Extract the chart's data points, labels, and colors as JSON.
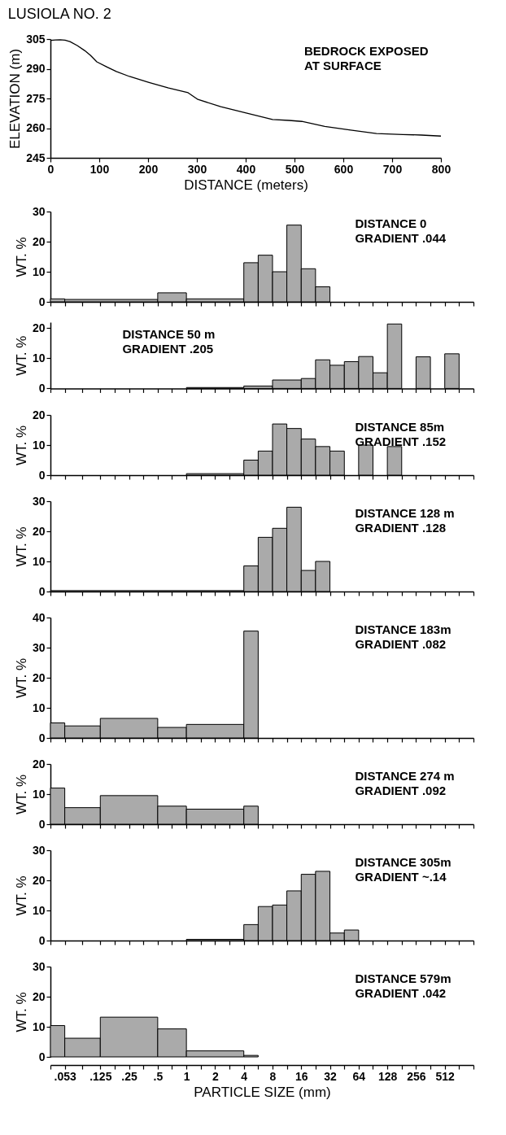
{
  "chart_data": [
    {
      "type": "line",
      "title": "LUSIOLA NO. 2",
      "xlabel": "DISTANCE (meters)",
      "ylabel": "ELEVATION (m)",
      "annotations": [
        "BEDROCK EXPOSED",
        "AT SURFACE"
      ],
      "color": "#000000",
      "marker": "none",
      "x": [
        0,
        10,
        20,
        30,
        40,
        55,
        70,
        82,
        95,
        115,
        135,
        162,
        202,
        242,
        282,
        302,
        349,
        401,
        455,
        489,
        515,
        562,
        615,
        668,
        722,
        760,
        800
      ],
      "values": [
        304.3,
        304.5,
        304.6,
        304.4,
        303.7,
        301.7,
        299.2,
        296.8,
        293.5,
        291,
        288.6,
        286.1,
        283.1,
        280.3,
        277.9,
        274.5,
        270.8,
        267.7,
        264.4,
        263.9,
        263.4,
        260.9,
        259,
        257.3,
        256.8,
        256.5,
        256
      ],
      "xlim": [
        0,
        800
      ],
      "xticks": [
        0,
        100,
        200,
        300,
        400,
        500,
        600,
        700,
        800
      ],
      "ylim": [
        245,
        305
      ],
      "yticks": [
        245,
        260,
        275,
        290,
        305
      ]
    },
    {
      "type": "histogram",
      "ylabel": "WT. %",
      "annotations": [
        "DISTANCE 0",
        "GRADIENT .044"
      ],
      "color": "#aaaaaa",
      "log": "x",
      "tick_labels": "y",
      "bins": [
        0.0375,
        0.053,
        0.5,
        1,
        4,
        5.66,
        8,
        11.3,
        16,
        22.6,
        32
      ],
      "values": [
        1,
        0.8,
        3,
        1,
        13,
        15.5,
        10,
        25.5,
        11,
        5
      ],
      "xlim": [
        0.0375,
        1024
      ],
      "xticks": [
        0.0375,
        0.053,
        0.0814,
        0.125,
        0.177,
        0.25,
        0.354,
        0.5,
        0.707,
        1,
        1.41,
        2,
        2.83,
        4,
        5.66,
        8,
        11.3,
        16,
        22.6,
        32,
        45.3,
        64,
        90.5,
        128,
        181,
        256,
        362,
        512,
        724,
        1024
      ],
      "ylim": [
        0,
        30
      ],
      "yticks": [
        0,
        10,
        20,
        30
      ]
    },
    {
      "type": "histogram",
      "ylabel": "WT. %",
      "annotations": [
        "DISTANCE 50 m",
        "GRADIENT .205"
      ],
      "color": "#aaaaaa",
      "log": "x",
      "tick_labels": "y",
      "bins": [
        1,
        4,
        8,
        16,
        22.6,
        32,
        45.3,
        64,
        90.5,
        128,
        181,
        256,
        362,
        512,
        724
      ],
      "values": [
        0.3,
        0.8,
        2.8,
        3.3,
        9.5,
        7.7,
        8.9,
        10.6,
        5.2,
        21.4,
        0,
        10.5,
        0,
        11.5
      ],
      "xlim": [
        0.0375,
        1024
      ],
      "xticks": [
        0.0375,
        0.053,
        0.0814,
        0.125,
        0.177,
        0.25,
        0.354,
        0.5,
        0.707,
        1,
        1.41,
        2,
        2.83,
        4,
        5.66,
        8,
        11.3,
        16,
        22.6,
        32,
        45.3,
        64,
        90.5,
        128,
        181,
        256,
        362,
        512,
        724,
        1024
      ],
      "ylim": [
        0,
        22
      ],
      "yticks": [
        0,
        10,
        20
      ]
    },
    {
      "type": "histogram",
      "ylabel": "WT. %",
      "annotations": [
        "DISTANCE 85m",
        "GRADIENT .152"
      ],
      "color": "#aaaaaa",
      "log": "x",
      "tick_labels": "y",
      "bins": [
        1,
        4,
        5.66,
        8,
        11.3,
        16,
        22.6,
        32,
        45.3,
        64,
        90.5,
        128,
        181
      ],
      "values": [
        0.5,
        5,
        8,
        17,
        15.5,
        12,
        9.5,
        8,
        0,
        10,
        0,
        9.5
      ],
      "xlim": [
        0.0375,
        1024
      ],
      "xticks": [
        0.0375,
        0.053,
        0.0814,
        0.125,
        0.177,
        0.25,
        0.354,
        0.5,
        0.707,
        1,
        1.41,
        2,
        2.83,
        4,
        5.66,
        8,
        11.3,
        16,
        22.6,
        32,
        45.3,
        64,
        90.5,
        128,
        181,
        256,
        362,
        512,
        724,
        1024
      ],
      "ylim": [
        0,
        20
      ],
      "yticks": [
        0,
        10,
        20
      ]
    },
    {
      "type": "histogram",
      "ylabel": "WT. %",
      "annotations": [
        "DISTANCE 128 m",
        "GRADIENT .128"
      ],
      "color": "#aaaaaa",
      "log": "x",
      "tick_labels": "y",
      "bins": [
        0.0375,
        4,
        5.66,
        8,
        11.3,
        16,
        22.6,
        32
      ],
      "values": [
        0.3,
        8.5,
        18,
        21,
        28,
        7,
        10
      ],
      "xlim": [
        0.0375,
        1024
      ],
      "xticks": [
        0.0375,
        0.053,
        0.0814,
        0.125,
        0.177,
        0.25,
        0.354,
        0.5,
        0.707,
        1,
        1.41,
        2,
        2.83,
        4,
        5.66,
        8,
        11.3,
        16,
        22.6,
        32,
        45.3,
        64,
        90.5,
        128,
        181,
        256,
        362,
        512,
        724,
        1024
      ],
      "ylim": [
        0,
        30
      ],
      "yticks": [
        0,
        10,
        20,
        30
      ]
    },
    {
      "type": "histogram",
      "ylabel": "WT. %",
      "annotations": [
        "DISTANCE 183m",
        "GRADIENT .082"
      ],
      "color": "#aaaaaa",
      "log": "x",
      "tick_labels": "y",
      "bins": [
        0.0375,
        0.053,
        0.125,
        0.5,
        1,
        4,
        5.66
      ],
      "values": [
        5,
        4,
        6.5,
        3.5,
        4.5,
        35.5
      ],
      "xlim": [
        0.0375,
        1024
      ],
      "xticks": [
        0.0375,
        0.053,
        0.0814,
        0.125,
        0.177,
        0.25,
        0.354,
        0.5,
        0.707,
        1,
        1.41,
        2,
        2.83,
        4,
        5.66,
        8,
        11.3,
        16,
        22.6,
        32,
        45.3,
        64,
        90.5,
        128,
        181,
        256,
        362,
        512,
        724,
        1024
      ],
      "ylim": [
        0,
        40
      ],
      "yticks": [
        0,
        10,
        20,
        30,
        40
      ]
    },
    {
      "type": "histogram",
      "ylabel": "WT. %",
      "annotations": [
        "DISTANCE 274 m",
        "GRADIENT .092"
      ],
      "color": "#aaaaaa",
      "log": "x",
      "tick_labels": "y",
      "bins": [
        0.0375,
        0.053,
        0.125,
        0.5,
        1,
        4,
        5.66
      ],
      "values": [
        12,
        5.5,
        9.5,
        6,
        5,
        6
      ],
      "xlim": [
        0.0375,
        1024
      ],
      "xticks": [
        0.0375,
        0.053,
        0.0814,
        0.125,
        0.177,
        0.25,
        0.354,
        0.5,
        0.707,
        1,
        1.41,
        2,
        2.83,
        4,
        5.66,
        8,
        11.3,
        16,
        22.6,
        32,
        45.3,
        64,
        90.5,
        128,
        181,
        256,
        362,
        512,
        724,
        1024
      ],
      "ylim": [
        0,
        20
      ],
      "yticks": [
        0,
        10,
        20
      ]
    },
    {
      "type": "histogram",
      "ylabel": "WT. %",
      "annotations": [
        "DISTANCE 305m",
        "GRADIENT ~.14"
      ],
      "color": "#aaaaaa",
      "log": "x",
      "tick_labels": "y",
      "bins": [
        1,
        4,
        5.66,
        8,
        11.3,
        16,
        22.6,
        32,
        45.3,
        64
      ],
      "values": [
        0.4,
        5.3,
        11.3,
        11.8,
        16.5,
        22,
        23,
        2.5,
        3.5
      ],
      "xlim": [
        0.0375,
        1024
      ],
      "xticks": [
        0.0375,
        0.053,
        0.0814,
        0.125,
        0.177,
        0.25,
        0.354,
        0.5,
        0.707,
        1,
        1.41,
        2,
        2.83,
        4,
        5.66,
        8,
        11.3,
        16,
        22.6,
        32,
        45.3,
        64,
        90.5,
        128,
        181,
        256,
        362,
        512,
        724,
        1024
      ],
      "ylim": [
        0,
        30
      ],
      "yticks": [
        0,
        10,
        20,
        30
      ]
    },
    {
      "type": "histogram",
      "ylabel": "WT. %",
      "xlabel": "PARTICLE SIZE (mm)",
      "annotations": [
        "DISTANCE 579m",
        "GRADIENT .042"
      ],
      "color": "#aaaaaa",
      "log": "x",
      "bins": [
        0.0375,
        0.053,
        0.125,
        0.5,
        1,
        4,
        5.66
      ],
      "values": [
        10.4,
        6.2,
        13.2,
        9.3,
        2,
        0.5
      ],
      "xlim": [
        0.0375,
        1024
      ],
      "xticks": [
        {
          "value": 0.0375,
          "label": null
        },
        {
          "value": 0.053,
          "label": ".053"
        },
        {
          "value": 0.0814,
          "label": null
        },
        {
          "value": 0.125,
          "label": ".125"
        },
        {
          "value": 0.177,
          "label": null
        },
        {
          "value": 0.25,
          "label": ".25"
        },
        {
          "value": 0.354,
          "label": null
        },
        {
          "value": 0.5,
          "label": ".5"
        },
        {
          "value": 0.707,
          "label": null
        },
        1,
        {
          "value": 1.41,
          "label": null
        },
        2,
        {
          "value": 2.83,
          "label": null
        },
        4,
        {
          "value": 5.66,
          "label": null
        },
        8,
        {
          "value": 11.3,
          "label": null
        },
        16,
        {
          "value": 22.6,
          "label": null
        },
        32,
        {
          "value": 45.3,
          "label": null
        },
        64,
        {
          "value": 90.5,
          "label": null
        },
        128,
        {
          "value": 181,
          "label": null
        },
        256,
        {
          "value": 362,
          "label": null
        },
        512,
        {
          "value": 724,
          "label": null
        },
        {
          "value": 1024,
          "label": null
        }
      ],
      "ylim": [
        0,
        30
      ],
      "yticks": [
        0,
        10,
        20,
        30
      ]
    }
  ]
}
